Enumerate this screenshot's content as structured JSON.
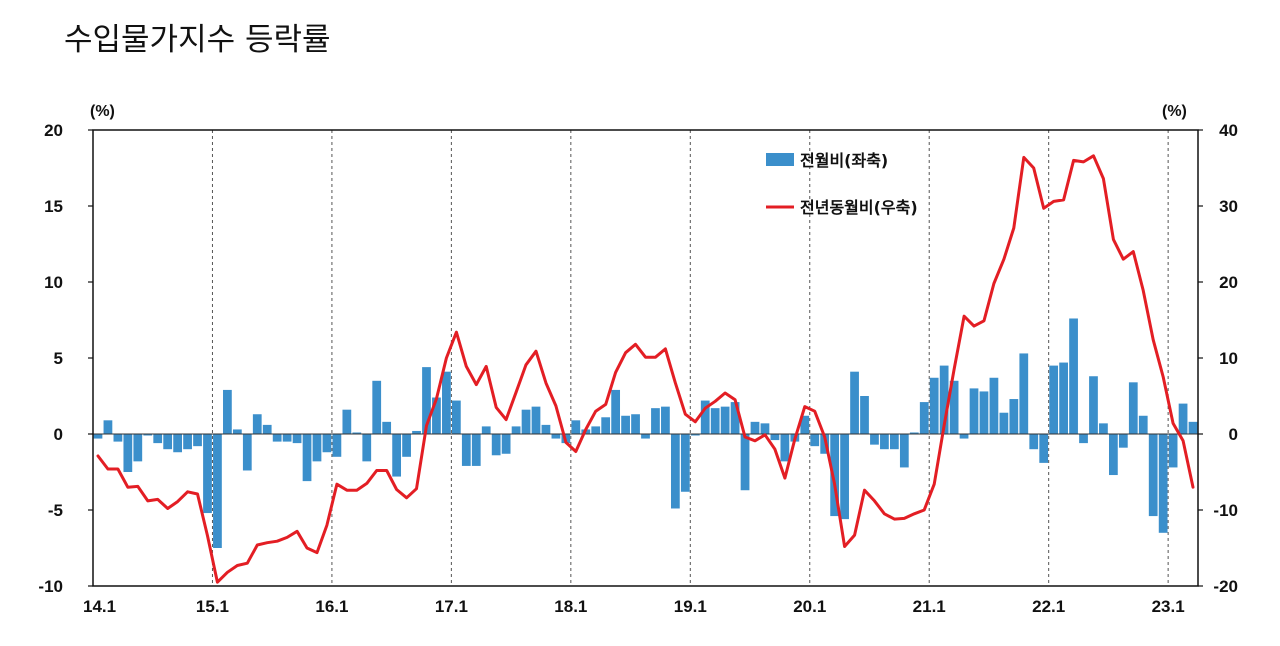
{
  "chart_data": {
    "type": "bar+line",
    "title": "수입물가지수 등락률",
    "left_axis": {
      "unit_label": "(%)",
      "ylim": [
        -10,
        20
      ],
      "ticks": [
        "20",
        "15",
        "10",
        "5",
        "0",
        "-5",
        "-10"
      ]
    },
    "right_axis": {
      "unit_label": "(%)",
      "ylim": [
        -20,
        40
      ],
      "ticks": [
        "40",
        "30",
        "20",
        "10",
        "0",
        "-10",
        "-20"
      ]
    },
    "x_ticks": [
      "14.1",
      "15.1",
      "16.1",
      "17.1",
      "18.1",
      "19.1",
      "20.1",
      "21.1",
      "22.1",
      "23.1"
    ],
    "vertical_gridlines": "dashed at each January",
    "legend_placement": "top-center",
    "colors": {
      "bar": "#3B8FCB",
      "line": "#E31E24"
    },
    "series": [
      {
        "name": "전월비(좌축)",
        "type": "bar",
        "axis": "left",
        "values": [
          -0.3,
          0.9,
          -0.5,
          -2.5,
          -1.8,
          -0.1,
          -0.6,
          -1.0,
          -1.2,
          -1.0,
          -0.8,
          -5.2,
          -7.5,
          2.9,
          0.3,
          -2.4,
          1.3,
          0.6,
          -0.5,
          -0.5,
          -0.6,
          -3.1,
          -1.8,
          -1.2,
          -1.5,
          1.6,
          0.1,
          -1.8,
          3.5,
          0.8,
          -2.8,
          -1.5,
          0.2,
          4.4,
          2.4,
          4.1,
          2.2,
          -2.1,
          -2.1,
          0.5,
          -1.4,
          -1.3,
          0.5,
          1.6,
          1.8,
          0.6,
          -0.3,
          -0.6,
          0.9,
          0.3,
          0.5,
          1.1,
          2.9,
          1.2,
          1.3,
          -0.3,
          1.7,
          1.8,
          -4.9,
          -3.8,
          -0.1,
          2.2,
          1.7,
          1.8,
          2.1,
          -3.7,
          0.8,
          0.7,
          -0.4,
          -1.8,
          -0.5,
          1.2,
          -0.8,
          -1.3,
          -5.4,
          -5.6,
          4.1,
          2.5,
          -0.7,
          -1.0,
          -1.0,
          -2.2,
          0.1,
          2.1,
          3.7,
          4.5,
          3.5,
          -0.3,
          3.0,
          2.8,
          3.7,
          1.4,
          2.3,
          5.3,
          -1.0,
          -1.9,
          4.5,
          4.7,
          7.6,
          -0.6,
          3.8,
          0.7,
          -2.7,
          -0.9,
          3.4,
          1.2,
          -5.4,
          -6.5,
          -2.2,
          2.0,
          0.8
        ]
      },
      {
        "name": "전년동월비(우축)",
        "type": "line",
        "axis": "right",
        "values": [
          -2.9,
          -4.6,
          -4.6,
          -7.0,
          -6.9,
          -8.8,
          -8.6,
          -9.8,
          -8.9,
          -7.6,
          -7.9,
          -13.4,
          -19.5,
          -18.2,
          -17.3,
          -17.0,
          -14.6,
          -14.3,
          -14.1,
          -13.6,
          -12.8,
          -15.0,
          -15.6,
          -12.0,
          -6.6,
          -7.4,
          -7.4,
          -6.5,
          -4.8,
          -4.8,
          -7.3,
          -8.4,
          -7.2,
          1.1,
          4.6,
          10.0,
          13.4,
          8.9,
          6.5,
          8.9,
          3.5,
          1.9,
          5.5,
          9.1,
          10.9,
          6.7,
          3.7,
          -1.1,
          -2.3,
          0.6,
          3.0,
          3.9,
          8.1,
          10.7,
          11.8,
          10.1,
          10.1,
          11.2,
          6.7,
          2.6,
          1.6,
          3.4,
          4.3,
          5.4,
          4.5,
          -0.4,
          -0.9,
          -0.1,
          -2.0,
          -5.8,
          -0.7,
          3.6,
          3.0,
          -0.4,
          -6.6,
          -14.8,
          -13.3,
          -7.4,
          -8.8,
          -10.5,
          -11.2,
          -11.1,
          -10.5,
          -10.0,
          -6.6,
          1.1,
          8.5,
          15.5,
          14.2,
          14.9,
          19.8,
          23.0,
          27.1,
          36.4,
          35.0,
          29.7,
          30.6,
          30.8,
          36.0,
          35.8,
          36.6,
          33.6,
          25.6,
          23.0,
          24.0,
          18.9,
          12.4,
          7.5,
          1.4,
          -0.9,
          -7.0
        ]
      }
    ]
  }
}
